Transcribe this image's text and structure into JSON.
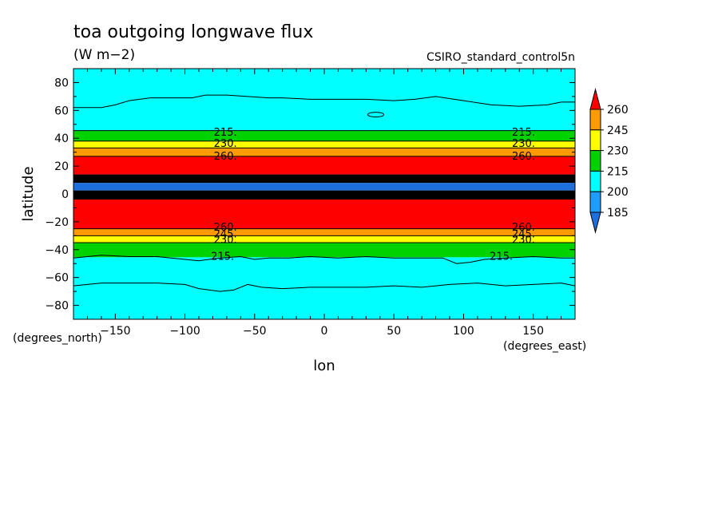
{
  "chart_data": {
    "type": "heatmap",
    "title": "toa outgoing longwave flux",
    "units": "(W m−2)",
    "dataset": "CSIRO_standard_control5n",
    "xlabel": "lon",
    "ylabel": "latitude",
    "x_units": "(degrees_east)",
    "y_units": "(degrees_north)",
    "xlim": [
      -180,
      180
    ],
    "ylim": [
      -90,
      90
    ],
    "x_ticks": [
      -150,
      -100,
      -50,
      0,
      50,
      100,
      150
    ],
    "x_tick_labels": [
      "−150",
      "−100",
      "−50",
      "0",
      "50",
      "100",
      "150"
    ],
    "y_ticks": [
      80,
      60,
      40,
      20,
      0,
      -20,
      -40,
      -60,
      -80
    ],
    "y_tick_labels": [
      "80",
      "60",
      "40",
      "20",
      "0",
      "−20",
      "−40",
      "−60",
      "−80"
    ],
    "colorbar": {
      "levels": [
        185,
        200,
        215,
        230,
        245,
        260
      ],
      "labels": [
        "185",
        "200",
        "215",
        "230",
        "245",
        "260"
      ],
      "colors": {
        "below_185": "#1e6edc",
        "185_200": "#1f9cff",
        "200_215": "#00ffff",
        "215_230": "#00d200",
        "230_245": "#ffff00",
        "245_260": "#ff9b00",
        "above_260": "#ff0000"
      },
      "extend": "both"
    },
    "bands": [
      {
        "lat_from": 90,
        "lat_to": 45.5,
        "color": "#00ffff"
      },
      {
        "lat_from": 45.5,
        "lat_to": 38,
        "color": "#00d200"
      },
      {
        "lat_from": 38,
        "lat_to": 33,
        "color": "#ffff00"
      },
      {
        "lat_from": 33,
        "lat_to": 27,
        "color": "#ff9b00"
      },
      {
        "lat_from": 27,
        "lat_to": 14,
        "color": "#ff0000"
      },
      {
        "lat_from": 14,
        "lat_to": 8,
        "color": "#000000"
      },
      {
        "lat_from": 8,
        "lat_to": 2.5,
        "color": "#1e6edc"
      },
      {
        "lat_from": 2.5,
        "lat_to": -4,
        "color": "#000000"
      },
      {
        "lat_from": -4,
        "lat_to": -25,
        "color": "#ff0000"
      },
      {
        "lat_from": -25,
        "lat_to": -30,
        "color": "#ff9b00"
      },
      {
        "lat_from": -30,
        "lat_to": -35,
        "color": "#ffff00"
      },
      {
        "lat_from": -35,
        "lat_to": -45.5,
        "color": "#00d200"
      },
      {
        "lat_from": -45.5,
        "lat_to": -90,
        "color": "#00ffff"
      }
    ],
    "contour_200_north": {
      "lon": [
        -180,
        -160,
        -150,
        -140,
        -125,
        -110,
        -95,
        -85,
        -70,
        -55,
        -40,
        -30,
        -10,
        10,
        30,
        50,
        65,
        80,
        100,
        120,
        140,
        160,
        170,
        180
      ],
      "lat": [
        62,
        62,
        64,
        67,
        69,
        69,
        69,
        71,
        71,
        70,
        69,
        69,
        68,
        68,
        68,
        67,
        68,
        70,
        67,
        64,
        63,
        64,
        66,
        66
      ]
    },
    "contour_200_south": {
      "lon": [
        -180,
        -160,
        -140,
        -120,
        -100,
        -90,
        -75,
        -65,
        -55,
        -45,
        -30,
        -10,
        10,
        30,
        50,
        70,
        90,
        110,
        130,
        150,
        170,
        180
      ],
      "lat": [
        -66,
        -64,
        -64,
        -64,
        -65,
        -68,
        -70,
        -69,
        -65,
        -67,
        -68,
        -67,
        -67,
        -67,
        -66,
        -67,
        -65,
        -64,
        -66,
        -65,
        -64,
        -66
      ]
    },
    "contour_215_south": {
      "lon": [
        -180,
        -160,
        -140,
        -120,
        -100,
        -90,
        -75,
        -60,
        -50,
        -40,
        -25,
        -10,
        10,
        30,
        50,
        70,
        85,
        95,
        105,
        115,
        130,
        150,
        170,
        180
      ],
      "lat": [
        -46,
        -44,
        -45,
        -45,
        -47,
        -48,
        -46,
        -45,
        -47,
        -46,
        -46,
        -45,
        -46,
        -45,
        -46,
        -46,
        -46,
        -50,
        -49,
        -47,
        -46,
        -45,
        -46,
        -46
      ]
    },
    "contour_labels": [
      {
        "text": "215.",
        "lon": -71,
        "lat": 44
      },
      {
        "text": "230.",
        "lon": -71,
        "lat": 36
      },
      {
        "text": "260.",
        "lon": -71,
        "lat": 27
      },
      {
        "text": "215.",
        "lon": 143,
        "lat": 44
      },
      {
        "text": "230.",
        "lon": 143,
        "lat": 36
      },
      {
        "text": "260.",
        "lon": 143,
        "lat": 27
      },
      {
        "text": "260.",
        "lon": -71,
        "lat": -24
      },
      {
        "text": "245.",
        "lon": -71,
        "lat": -29
      },
      {
        "text": "230.",
        "lon": -71,
        "lat": -33
      },
      {
        "text": "215.",
        "lon": -73,
        "lat": -45
      },
      {
        "text": "260.",
        "lon": 143,
        "lat": -24
      },
      {
        "text": "245.",
        "lon": 143,
        "lat": -29
      },
      {
        "text": "230.",
        "lon": 143,
        "lat": -33
      },
      {
        "text": "215.",
        "lon": 127,
        "lat": -45
      }
    ]
  }
}
